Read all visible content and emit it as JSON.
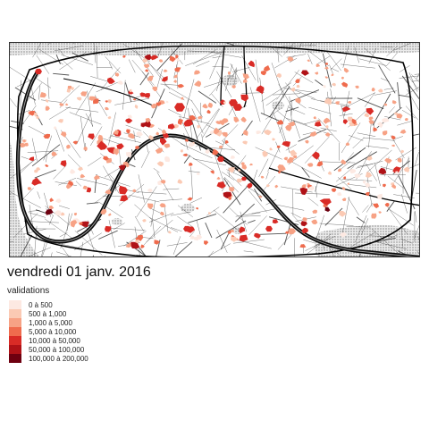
{
  "title": "vendredi 01 janv. 2016",
  "legend": {
    "title": "validations",
    "items": [
      {
        "label": "0 à 500",
        "color": "#fde9e2"
      },
      {
        "label": "500 à 1,000",
        "color": "#fbcab4"
      },
      {
        "label": "1,000 à 5,000",
        "color": "#f7a285"
      },
      {
        "label": "5,000 à 10,000",
        "color": "#ef6b4d"
      },
      {
        "label": "10,000 à 50,000",
        "color": "#d92b26"
      },
      {
        "label": "50,000 à 100,000",
        "color": "#b01217"
      },
      {
        "label": "100,000 à 200,000",
        "color": "#6e0010"
      }
    ]
  },
  "colors": {
    "river": "#0a0a0a",
    "parks": "#ebebeb",
    "streets": "#1a1a1a",
    "map_background": "#ffffff"
  }
}
